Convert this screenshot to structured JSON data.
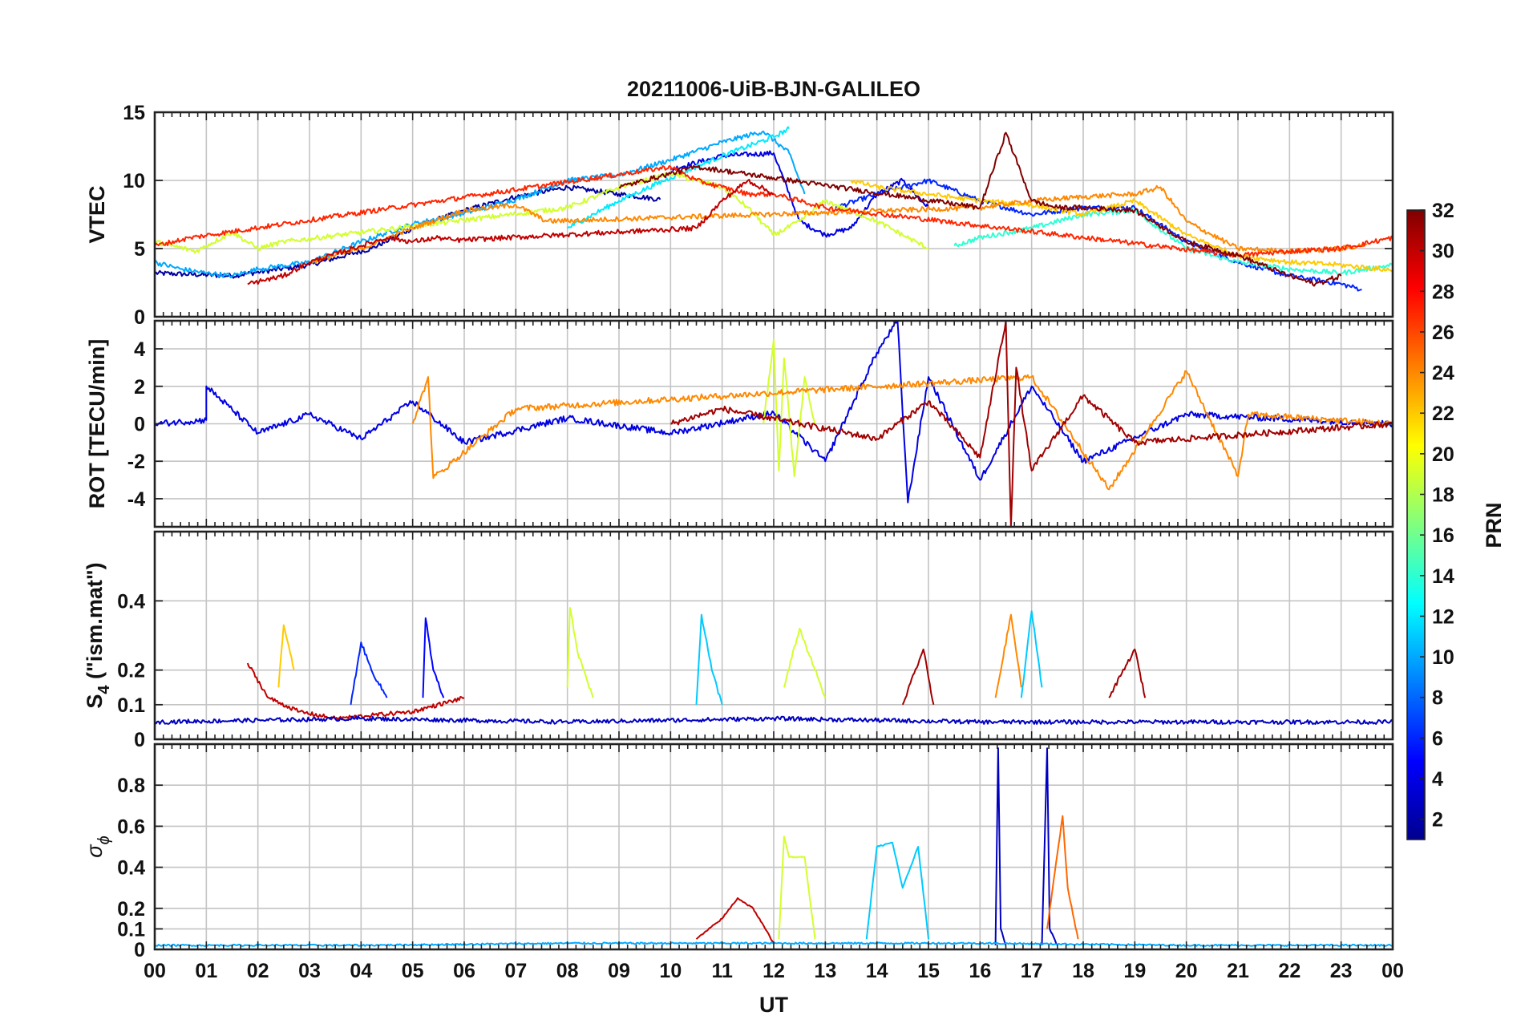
{
  "title": "20211006-UiB-BJN-GALILEO",
  "x_axis": {
    "label": "UT",
    "ticks": [
      "00",
      "01",
      "02",
      "03",
      "04",
      "05",
      "06",
      "07",
      "08",
      "09",
      "10",
      "11",
      "12",
      "13",
      "14",
      "15",
      "16",
      "17",
      "18",
      "19",
      "20",
      "21",
      "22",
      "23",
      "00"
    ]
  },
  "colorbar": {
    "label": "PRN",
    "colormap": "jet",
    "range": [
      1,
      32
    ],
    "ticks": [
      2,
      4,
      6,
      8,
      10,
      12,
      14,
      16,
      18,
      20,
      22,
      24,
      26,
      28,
      30,
      32
    ]
  },
  "panels": [
    {
      "id": "vtec",
      "ylabel": "VTEC",
      "ylim": [
        0,
        15
      ],
      "yticks": [
        0,
        5,
        10,
        15
      ]
    },
    {
      "id": "rot",
      "ylabel": "ROT [TECU/min]",
      "ylim": [
        -5.5,
        5.5
      ],
      "yticks": [
        -4,
        -2,
        0,
        2,
        4
      ]
    },
    {
      "id": "s4",
      "ylabel_main": "S",
      "ylabel_sub": "4",
      "ylabel_rest": " (\"ism.mat\")",
      "ylim": [
        0,
        0.6
      ],
      "yticks": [
        0,
        0.1,
        0.2,
        0.4
      ]
    },
    {
      "id": "sigphi",
      "ylabel_main": "σ",
      "ylabel_sub": "ϕ",
      "ylim": [
        0,
        1
      ],
      "yticks": [
        0,
        0.1,
        0.2,
        0.4,
        0.6,
        0.8
      ]
    }
  ],
  "chart_data": [
    {
      "type": "line",
      "title": "20211006-UiB-BJN-GALILEO",
      "ylabel": "VTEC",
      "xlabel": "",
      "xlim": [
        0,
        24
      ],
      "ylim": [
        0,
        15
      ],
      "grid": true,
      "series": [
        {
          "prn": 2,
          "x": [
            0.0,
            1.5,
            3.0,
            4.2,
            5.0,
            6.0,
            7.0,
            8.0,
            9.0,
            9.8
          ],
          "values": [
            3.2,
            3.0,
            3.8,
            5.0,
            6.5,
            7.8,
            8.8,
            9.5,
            9.0,
            8.6
          ]
        },
        {
          "prn": 4,
          "x": [
            10.0,
            11.0,
            12.0,
            12.5,
            13.0,
            13.5,
            14.0,
            14.5,
            15.0
          ],
          "values": [
            10.8,
            11.8,
            12.0,
            7.0,
            6.0,
            6.5,
            9.0,
            10.0,
            8.0
          ]
        },
        {
          "prn": 6,
          "x": [
            13.2,
            14.0,
            15.0,
            16.0,
            17.0,
            18.0,
            19.0,
            20.0,
            21.0,
            22.0,
            23.0,
            23.4
          ],
          "values": [
            8.0,
            9.0,
            10.0,
            8.5,
            7.5,
            8.0,
            8.0,
            5.5,
            4.0,
            3.0,
            2.4,
            2.0
          ]
        },
        {
          "prn": 10,
          "x": [
            0.0,
            0.5,
            1.0,
            1.5,
            2.0,
            3.0,
            4.0,
            5.0,
            6.0,
            7.0,
            8.0,
            9.0,
            10.0,
            11.0,
            11.8,
            12.3,
            12.6
          ],
          "values": [
            4.0,
            3.5,
            3.2,
            3.0,
            3.5,
            4.0,
            5.5,
            6.8,
            7.6,
            8.6,
            10.0,
            10.4,
            11.5,
            12.8,
            13.6,
            12.0,
            9.0
          ]
        },
        {
          "prn": 12,
          "x": [
            8.0,
            9.0,
            10.0,
            11.0,
            12.0,
            12.3
          ],
          "values": [
            6.5,
            8.5,
            10.2,
            11.8,
            13.2,
            13.8
          ]
        },
        {
          "prn": 14,
          "x": [
            15.5,
            16.0,
            17.0,
            18.0,
            19.0,
            20.0,
            21.0,
            22.0,
            23.0,
            24.0
          ],
          "values": [
            5.2,
            5.8,
            6.5,
            7.5,
            7.8,
            5.0,
            4.0,
            3.5,
            3.2,
            3.8
          ]
        },
        {
          "prn": 19,
          "x": [
            0.0,
            0.8,
            1.5,
            2.0,
            2.5,
            8.0,
            9.0,
            10.0,
            11.0,
            11.5,
            12.0,
            12.5,
            13.0,
            14.0,
            15.0
          ],
          "values": [
            5.5,
            4.8,
            6.2,
            5.0,
            5.5,
            8.0,
            9.5,
            10.5,
            9.5,
            8.0,
            6.0,
            7.0,
            8.5,
            7.0,
            5.0
          ]
        },
        {
          "prn": 22,
          "x": [
            13.5,
            14.0,
            15.0,
            16.0,
            17.0,
            18.0,
            19.0,
            20.0,
            21.0,
            22.0,
            23.0,
            24.0
          ],
          "values": [
            10.0,
            9.5,
            9.0,
            8.5,
            8.2,
            7.5,
            8.5,
            6.0,
            4.5,
            4.0,
            3.8,
            3.4
          ]
        },
        {
          "prn": 24,
          "x": [
            3.0,
            4.0,
            5.0,
            6.0,
            7.0,
            7.6,
            16.0,
            17.0,
            18.0,
            19.0,
            19.5,
            20.0,
            21.0,
            22.0,
            23.0,
            23.5
          ],
          "values": [
            4.0,
            5.0,
            6.5,
            7.8,
            8.2,
            7.0,
            8.0,
            8.5,
            8.8,
            9.0,
            9.5,
            7.0,
            5.0,
            4.8,
            5.0,
            5.3
          ]
        },
        {
          "prn": 27,
          "x": [
            0.0,
            0.7,
            10.0,
            10.5,
            11.0,
            11.5,
            12.0,
            12.5,
            13.0,
            21.0,
            22.0,
            23.0,
            24.0
          ],
          "values": [
            5.2,
            5.8,
            11.0,
            10.0,
            9.5,
            9.0,
            9.0,
            8.5,
            8.0,
            4.5,
            4.8,
            5.0,
            5.8
          ]
        },
        {
          "prn": 30,
          "x": [
            1.8,
            2.5,
            3.0,
            4.0,
            4.5,
            5.0,
            5.5,
            5.8,
            10.5,
            11.0,
            11.5,
            12.0
          ],
          "values": [
            2.4,
            3.0,
            4.0,
            5.2,
            5.8,
            5.5,
            5.8,
            5.6,
            6.5,
            8.5,
            10.0,
            9.0
          ]
        },
        {
          "prn": 32,
          "x": [
            9.0,
            10.0,
            10.5,
            16.0,
            16.5,
            17.0,
            17.5,
            18.0,
            19.0,
            20.0,
            21.0,
            22.0,
            22.5,
            23.0
          ],
          "values": [
            9.5,
            10.5,
            11.0,
            8.0,
            13.5,
            8.5,
            8.0,
            8.0,
            7.8,
            5.5,
            4.5,
            3.0,
            2.4,
            3.0
          ]
        }
      ]
    },
    {
      "type": "line",
      "ylabel": "ROT [TECU/min]",
      "xlabel": "",
      "xlim": [
        0,
        24
      ],
      "ylim": [
        -5.5,
        5.5
      ],
      "grid": true,
      "series": [
        {
          "prn": 4,
          "x": [
            0.0,
            1.0,
            1.0,
            2.0,
            3.0,
            4.0,
            5.0,
            6.0,
            8.0,
            10.0,
            12.0,
            13.0,
            14.0,
            14.4,
            14.6,
            15.0,
            16.0,
            17.0,
            18.0,
            20.0,
            24.0
          ],
          "values": [
            0.0,
            0.2,
            2.0,
            -0.5,
            0.5,
            -0.8,
            1.2,
            -1.0,
            0.3,
            -0.5,
            0.6,
            -2.0,
            3.8,
            5.5,
            -4.2,
            2.5,
            -3.0,
            2.0,
            -2.0,
            0.5,
            0.0
          ]
        },
        {
          "prn": 19,
          "x": [
            11.8,
            12.0,
            12.1,
            12.2,
            12.4,
            12.6,
            12.8
          ],
          "values": [
            0.0,
            4.5,
            -2.5,
            3.5,
            -2.8,
            2.5,
            0.0
          ]
        },
        {
          "prn": 24,
          "x": [
            5.0,
            5.3,
            5.4,
            7.0,
            17.0,
            18.5,
            20.0,
            21.0,
            21.2,
            24.0
          ],
          "values": [
            0.0,
            2.5,
            -2.9,
            0.8,
            2.5,
            -3.5,
            2.8,
            -2.8,
            0.5,
            0.0
          ]
        },
        {
          "prn": 31,
          "x": [
            10.0,
            11.0,
            14.0,
            15.0,
            16.0,
            16.5,
            16.6,
            16.7,
            17.0,
            18.0,
            19.0,
            24.0
          ],
          "values": [
            0.0,
            0.8,
            -0.8,
            1.2,
            -1.8,
            5.5,
            -5.5,
            3.0,
            -2.5,
            1.5,
            -1.0,
            0.0
          ]
        }
      ]
    },
    {
      "type": "line",
      "ylabel": "S4 (\"ism.mat\")",
      "xlabel": "",
      "xlim": [
        0,
        24
      ],
      "ylim": [
        0,
        0.6
      ],
      "grid": true,
      "series": [
        {
          "prn": 5,
          "x": [
            5.2,
            5.25,
            5.4,
            5.6
          ],
          "values": [
            0.12,
            0.35,
            0.2,
            0.12
          ]
        },
        {
          "prn": 6,
          "x": [
            3.8,
            4.0,
            4.2,
            4.5
          ],
          "values": [
            0.1,
            0.28,
            0.2,
            0.12
          ]
        },
        {
          "prn": 11,
          "x": [
            10.5,
            10.6,
            10.8,
            11.0
          ],
          "values": [
            0.1,
            0.36,
            0.2,
            0.1
          ]
        },
        {
          "prn": 11,
          "x": [
            16.8,
            17.0,
            17.2
          ],
          "values": [
            0.12,
            0.37,
            0.15
          ]
        },
        {
          "prn": 19,
          "x": [
            8.0,
            8.05,
            8.2,
            8.5
          ],
          "values": [
            0.15,
            0.38,
            0.25,
            0.12
          ]
        },
        {
          "prn": 19,
          "x": [
            12.2,
            12.5,
            12.8,
            13.0
          ],
          "values": [
            0.15,
            0.32,
            0.2,
            0.12
          ]
        },
        {
          "prn": 22,
          "x": [
            2.4,
            2.5,
            2.7
          ],
          "values": [
            0.15,
            0.33,
            0.2
          ]
        },
        {
          "prn": 24,
          "x": [
            16.3,
            16.6,
            16.8
          ],
          "values": [
            0.12,
            0.36,
            0.15
          ]
        },
        {
          "prn": 30,
          "x": [
            1.8,
            2.2,
            2.8,
            3.5,
            5.0,
            6.0
          ],
          "values": [
            0.22,
            0.12,
            0.08,
            0.06,
            0.08,
            0.12
          ]
        },
        {
          "prn": 31,
          "x": [
            14.5,
            14.9,
            15.1
          ],
          "values": [
            0.1,
            0.26,
            0.1
          ]
        },
        {
          "prn": 31,
          "x": [
            18.5,
            19.0,
            19.2
          ],
          "values": [
            0.12,
            0.26,
            0.12
          ]
        },
        {
          "prn": 3,
          "x": [
            0.0,
            4.0,
            8.0,
            12.0,
            16.0,
            20.0,
            24.0
          ],
          "values": [
            0.05,
            0.06,
            0.05,
            0.06,
            0.05,
            0.05,
            0.05
          ]
        }
      ]
    },
    {
      "type": "line",
      "ylabel": "σϕ",
      "xlabel": "UT",
      "xlim": [
        0,
        24
      ],
      "ylim": [
        0,
        1
      ],
      "grid": true,
      "series": [
        {
          "prn": 3,
          "x": [
            16.3,
            16.35,
            16.4,
            16.5
          ],
          "values": [
            0.02,
            0.98,
            0.1,
            0.02
          ]
        },
        {
          "prn": 3,
          "x": [
            17.2,
            17.3,
            17.35,
            17.5
          ],
          "values": [
            0.02,
            0.98,
            0.1,
            0.02
          ]
        },
        {
          "prn": 11,
          "x": [
            13.8,
            14.0,
            14.3,
            14.5,
            14.8,
            15.0
          ],
          "values": [
            0.05,
            0.5,
            0.52,
            0.3,
            0.5,
            0.05
          ]
        },
        {
          "prn": 19,
          "x": [
            12.1,
            12.2,
            12.3,
            12.6,
            12.8
          ],
          "values": [
            0.05,
            0.55,
            0.45,
            0.45,
            0.05
          ]
        },
        {
          "prn": 25,
          "x": [
            17.3,
            17.6,
            17.7,
            17.9
          ],
          "values": [
            0.1,
            0.65,
            0.3,
            0.05
          ]
        },
        {
          "prn": 30,
          "x": [
            10.5,
            11.0,
            11.3,
            11.6,
            12.0
          ],
          "values": [
            0.05,
            0.15,
            0.25,
            0.2,
            0.03
          ]
        },
        {
          "prn": 10,
          "x": [
            0.0,
            4.0,
            8.0,
            12.0,
            16.0,
            20.0,
            24.0
          ],
          "values": [
            0.02,
            0.02,
            0.03,
            0.03,
            0.03,
            0.02,
            0.02
          ]
        }
      ]
    }
  ]
}
